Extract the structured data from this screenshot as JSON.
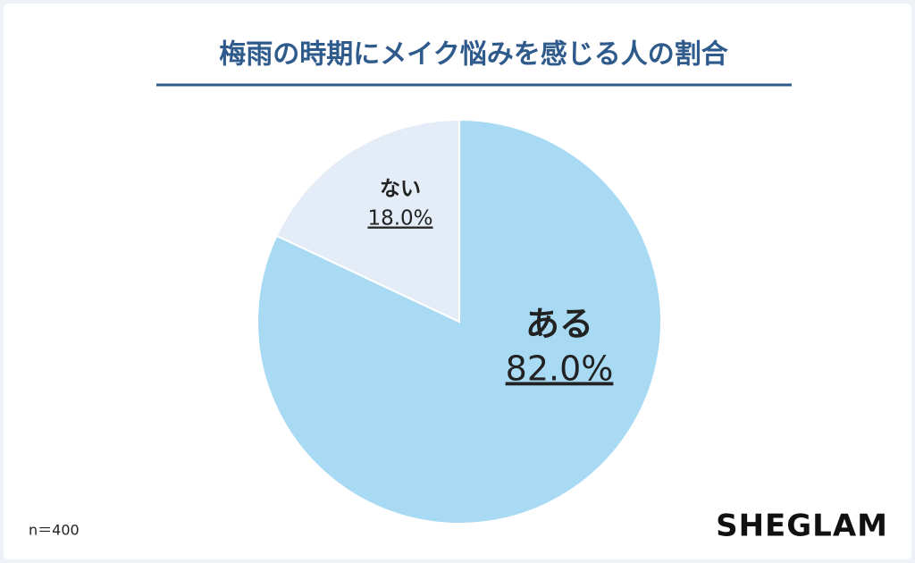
{
  "chart_data": {
    "type": "pie",
    "title": "梅雨の時期にメイク悩みを感じる人の割合",
    "categories": [
      "ある",
      "ない"
    ],
    "values": [
      82.0,
      18.0
    ],
    "value_labels": [
      "82.0%",
      "18.0%"
    ],
    "colors": [
      "#a9daf4",
      "#e4ecf7"
    ],
    "note": "n＝400",
    "brand": "SHEGLAM"
  }
}
